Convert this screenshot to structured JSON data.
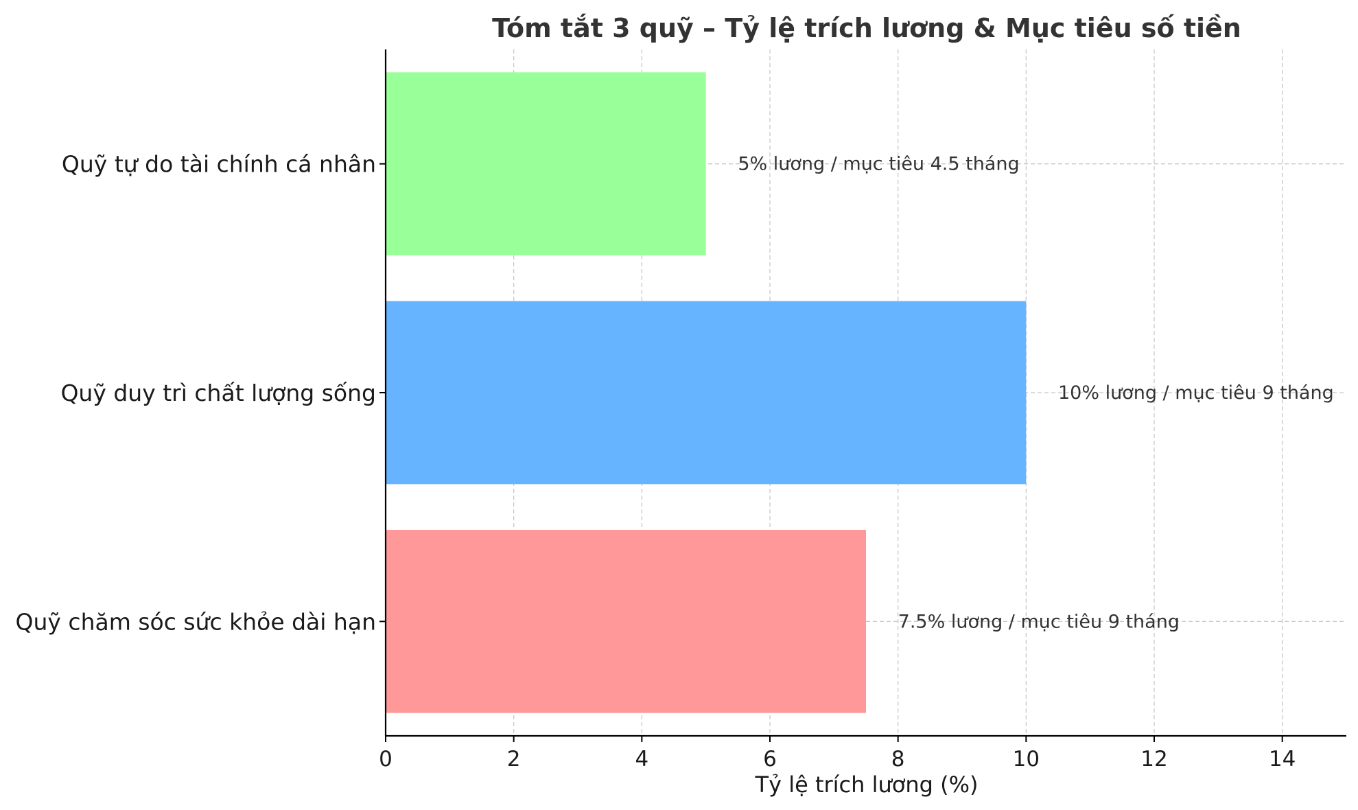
{
  "chart_data": {
    "type": "bar",
    "orientation": "horizontal",
    "title": "Tóm tắt 3 quỹ – Tỷ lệ trích lương & Mục tiêu số tiền",
    "xlabel": "Tỷ lệ trích lương (%)",
    "ylabel": "",
    "xlim": [
      0,
      15
    ],
    "x_ticks": [
      0,
      2,
      4,
      6,
      8,
      10,
      12,
      14
    ],
    "grid": true,
    "categories": [
      "Quỹ tự do tài chính cá nhân",
      "Quỹ duy trì chất lượng sống",
      "Quỹ chăm sóc sức khỏe dài hạn"
    ],
    "values": [
      5,
      10,
      7.5
    ],
    "colors": [
      "#99ff99",
      "#66b3ff",
      "#ff9999"
    ],
    "data_labels": [
      "5% lương / mục tiêu 4.5 tháng",
      "10% lương / mục tiêu 9 tháng",
      "7.5% lương / mục tiêu 9 tháng"
    ]
  }
}
